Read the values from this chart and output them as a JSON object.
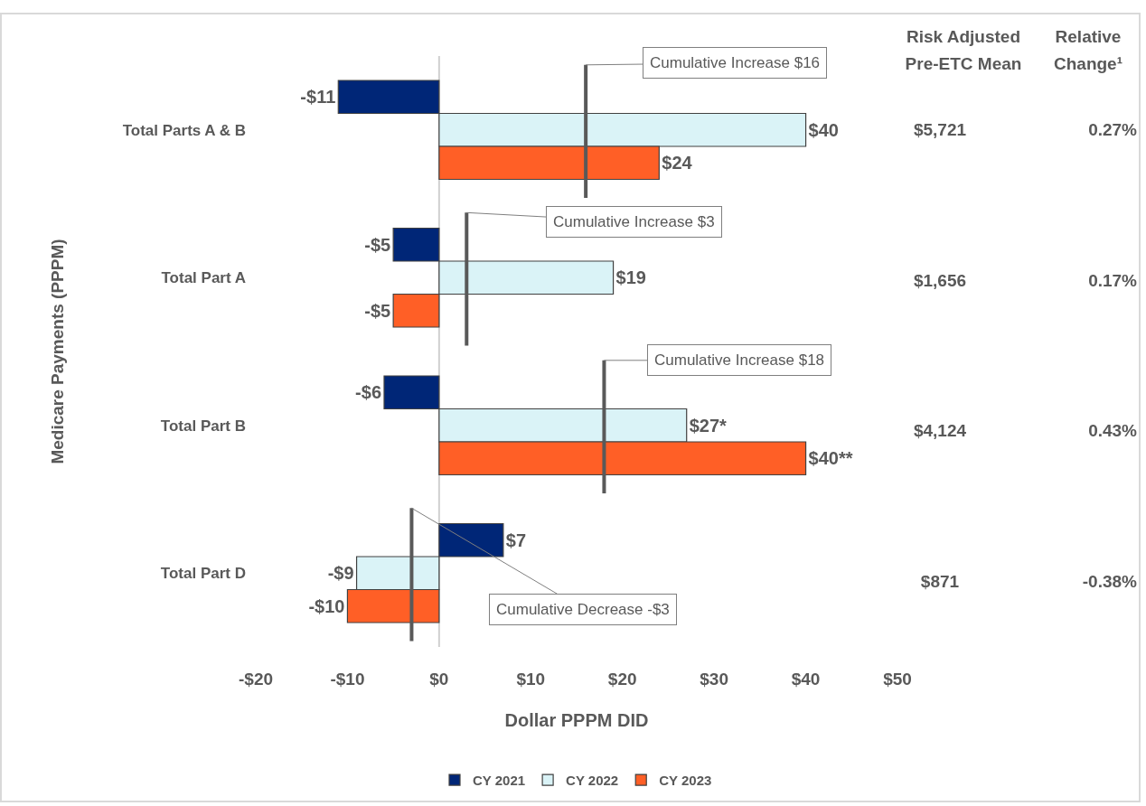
{
  "chart_data": [
    {
      "type": "bar",
      "orientation": "horizontal",
      "xlabel": "Dollar PPPM DID",
      "ylabel": "Medicare Payments (PPPM)",
      "categories": [
        "Total Parts A & B",
        "Total Part A",
        "Total Part B",
        "Total Part D"
      ],
      "series": [
        {
          "name": "CY 2021",
          "color": "#002677",
          "values": [
            -11,
            -5,
            -6,
            7
          ],
          "value_labels": [
            "-$11",
            "-$5",
            "-$6",
            "$7"
          ]
        },
        {
          "name": "CY 2022",
          "color": "#daf3f7",
          "values": [
            40,
            19,
            27,
            -9
          ],
          "value_labels": [
            "$40",
            "$19",
            "$27*",
            "-$9"
          ]
        },
        {
          "name": "CY 2023",
          "color": "#ff5f26",
          "values": [
            24,
            -5,
            40,
            -10
          ],
          "value_labels": [
            "$24",
            "-$5",
            "$40**",
            "-$10"
          ]
        }
      ],
      "xlim": [
        -20,
        50
      ],
      "xticks": [
        {
          "value": -20,
          "label": "-$20"
        },
        {
          "value": -10,
          "label": "-$10"
        },
        {
          "value": 0,
          "label": "$0"
        },
        {
          "value": 10,
          "label": "$10"
        },
        {
          "value": 20,
          "label": "$20"
        },
        {
          "value": 30,
          "label": "$30"
        },
        {
          "value": 40,
          "label": "$40"
        },
        {
          "value": 50,
          "label": "$50"
        }
      ],
      "ref_lines": [
        {
          "axis": "x",
          "value": 16,
          "label": "Cumulative Increase $16",
          "color": "#595959"
        },
        {
          "axis": "x",
          "value": 3,
          "label": "Cumulative Increase $3",
          "color": "#595959"
        },
        {
          "axis": "x",
          "value": 18,
          "label": "Cumulative Increase $18",
          "color": "#595959"
        },
        {
          "axis": "x",
          "value": -3,
          "label": "Cumulative Decrease -$3",
          "color": "#595959"
        },
        {
          "axis": "x",
          "value": 0,
          "color": "#d0d0d0"
        }
      ],
      "grid": false,
      "legend": "bottom"
    },
    {
      "type": "other",
      "categories": [
        "Risk Adjusted Pre-ETC Mean",
        "Relative Change¹"
      ],
      "cell_labels": [
        [
          "$5,721",
          "0.27%"
        ],
        [
          "$1,656",
          "0.17%"
        ],
        [
          "$4,124",
          "0.43%"
        ],
        [
          "$871",
          "-0.38%"
        ]
      ]
    }
  ]
}
